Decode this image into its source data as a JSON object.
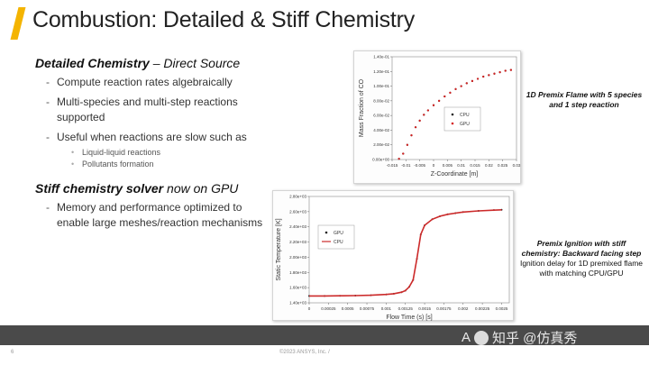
{
  "slide": {
    "title": "Combustion: Detailed & Stiff Chemistry",
    "accent_color": "#f4b400",
    "page_number": "6",
    "copyright": "©2023 ANSYS, Inc. /",
    "watermark": "知乎 @仿真秀",
    "watermark_prefix": "A"
  },
  "left": {
    "section1": {
      "heading_bold": "Detailed Chemistry",
      "heading_rest": " – Direct Source",
      "bullets": [
        "Compute reaction rates algebraically",
        "Multi-species and multi-step reactions supported",
        "Useful when reactions are slow such as"
      ],
      "sub_bullets": [
        "Liquid-liquid reactions",
        "Pollutants formation"
      ]
    },
    "section2": {
      "heading_bold": "Stiff chemistry solver",
      "heading_rest": " now on GPU",
      "bullets": [
        "Memory and performance optimized to enable large meshes/reaction mechanisms"
      ]
    }
  },
  "captions": {
    "cap1": "1D Premix Flame with 5 species and 1 step reaction",
    "cap2_bold": "Premix Ignition with stiff chemistry: Backward facing step",
    "cap2_rest": "Ignition delay for 1D premixed flame with matching CPU/GPU"
  },
  "chart_data": [
    {
      "type": "scatter",
      "title": "",
      "xlabel": "Z-Coordinate [m]",
      "ylabel": "Mass Fraction of CO",
      "xlim": [
        -0.015,
        0.03
      ],
      "ylim": [
        0,
        0.14
      ],
      "xticks": [
        "-0.015",
        "-0.01",
        "-0.005",
        "0",
        "0.005",
        "0.01",
        "0.015",
        "0.02",
        "0.025",
        "0.03"
      ],
      "yticks": [
        "0.00e+00",
        "2.00e-02",
        "4.00e-02",
        "6.00e-02",
        "8.00e-02",
        "1.00e-01",
        "1.20e-01",
        "1.40e-01"
      ],
      "legend_position": "center-left",
      "series": [
        {
          "name": "CPU",
          "color": "#222222",
          "x": [
            -0.0125,
            -0.011,
            -0.0095,
            -0.008,
            -0.0065,
            -0.005,
            -0.0035,
            -0.002,
            0.0,
            0.002,
            0.004,
            0.006,
            0.008,
            0.01,
            0.012,
            0.014,
            0.016,
            0.018,
            0.02,
            0.022,
            0.024,
            0.026,
            0.028
          ],
          "y": [
            0.001,
            0.008,
            0.02,
            0.033,
            0.044,
            0.053,
            0.061,
            0.067,
            0.074,
            0.08,
            0.086,
            0.091,
            0.096,
            0.1,
            0.104,
            0.107,
            0.11,
            0.113,
            0.115,
            0.117,
            0.119,
            0.121,
            0.122
          ]
        },
        {
          "name": "GPU",
          "color": "#d62020",
          "x": [
            -0.0125,
            -0.011,
            -0.0095,
            -0.008,
            -0.0065,
            -0.005,
            -0.0035,
            -0.002,
            0.0,
            0.002,
            0.004,
            0.006,
            0.008,
            0.01,
            0.012,
            0.014,
            0.016,
            0.018,
            0.02,
            0.022,
            0.024,
            0.026,
            0.028
          ],
          "y": [
            0.001,
            0.008,
            0.02,
            0.033,
            0.044,
            0.053,
            0.061,
            0.067,
            0.074,
            0.08,
            0.086,
            0.091,
            0.096,
            0.1,
            0.104,
            0.107,
            0.11,
            0.113,
            0.115,
            0.117,
            0.119,
            0.121,
            0.122
          ]
        }
      ]
    },
    {
      "type": "line",
      "title": "",
      "xlabel": "Flow Time (s) [s]",
      "ylabel": "Static Temperature [K]",
      "xlim": [
        0,
        0.0026
      ],
      "ylim": [
        1400,
        2800
      ],
      "xticks": [
        "0",
        "0.00025",
        "0.0005",
        "0.00075",
        "0.001",
        "0.00125",
        "0.0015",
        "0.00175",
        "0.002",
        "0.00225",
        "0.0025"
      ],
      "yticks": [
        "1.40e+03",
        "1.60e+03",
        "1.80e+03",
        "2.00e+03",
        "2.20e+03",
        "2.40e+03",
        "2.60e+03",
        "2.80e+03"
      ],
      "legend_position": "top-left",
      "series": [
        {
          "name": "GPU",
          "color": "#222222",
          "style": "markers",
          "x": [
            0.0,
            0.0002,
            0.0004,
            0.0006,
            0.0008,
            0.001,
            0.0011,
            0.0012,
            0.00125,
            0.0013,
            0.00135,
            0.0014,
            0.00145,
            0.0015,
            0.0016,
            0.0017,
            0.0018,
            0.0019,
            0.002,
            0.0022,
            0.0024,
            0.0025
          ],
          "y": [
            1490,
            1490,
            1492,
            1495,
            1500,
            1510,
            1520,
            1540,
            1560,
            1610,
            1700,
            1980,
            2300,
            2420,
            2500,
            2540,
            2565,
            2580,
            2595,
            2610,
            2620,
            2625
          ]
        },
        {
          "name": "CPU",
          "color": "#cc2a2a",
          "style": "line",
          "x": [
            0.0,
            0.0002,
            0.0004,
            0.0006,
            0.0008,
            0.001,
            0.0011,
            0.0012,
            0.00125,
            0.0013,
            0.00135,
            0.0014,
            0.00145,
            0.0015,
            0.0016,
            0.0017,
            0.0018,
            0.0019,
            0.002,
            0.0022,
            0.0024,
            0.0025
          ],
          "y": [
            1490,
            1490,
            1492,
            1495,
            1500,
            1510,
            1520,
            1540,
            1560,
            1610,
            1700,
            1980,
            2300,
            2420,
            2500,
            2540,
            2565,
            2580,
            2595,
            2610,
            2620,
            2625
          ]
        }
      ]
    }
  ]
}
